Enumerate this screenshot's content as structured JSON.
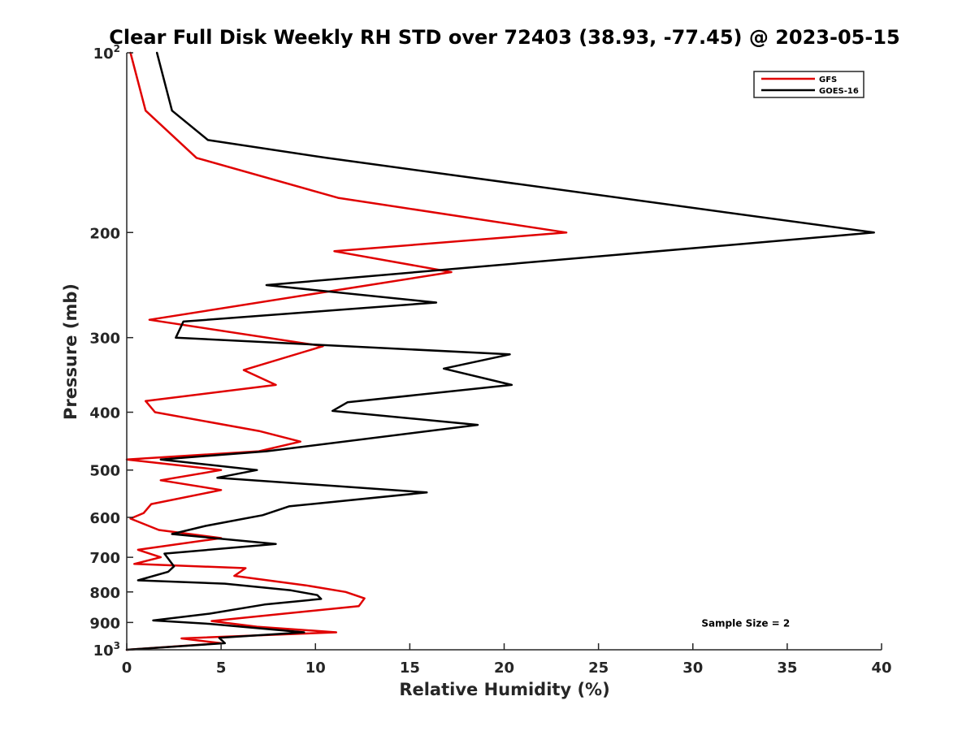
{
  "chart_data": {
    "type": "line",
    "title": "Clear Full Disk Weekly RH STD over 72403 (38.93, -77.45) @ 2023-05-15",
    "xlabel": "Relative Humidity (%)",
    "ylabel": "Pressure (mb)",
    "xlim": [
      0,
      40
    ],
    "ylim": [
      100,
      1000
    ],
    "y_scale": "log",
    "y_reversed": true,
    "grid": false,
    "legend_position": "top-right",
    "x_ticks": [
      0,
      5,
      10,
      15,
      20,
      25,
      30,
      35,
      40
    ],
    "x_tick_labels": [
      "0",
      "5",
      "10",
      "15",
      "20",
      "25",
      "30",
      "35",
      "40"
    ],
    "y_ticks": [
      100,
      200,
      300,
      400,
      500,
      600,
      700,
      800,
      900,
      1000
    ],
    "y_tick_labels": [
      {
        "base": "10",
        "sup": "2"
      },
      {
        "base": "200"
      },
      {
        "base": "300"
      },
      {
        "base": "400"
      },
      {
        "base": "500"
      },
      {
        "base": "600"
      },
      {
        "base": "700"
      },
      {
        "base": "800"
      },
      {
        "base": "900"
      },
      {
        "base": "10",
        "sup": "3"
      }
    ],
    "series": [
      {
        "name": "GFS",
        "color": "#e00000",
        "points": [
          [
            0.2,
            100
          ],
          [
            1.0,
            125
          ],
          [
            3.7,
            150
          ],
          [
            11.2,
            175
          ],
          [
            23.3,
            200
          ],
          [
            11.0,
            215
          ],
          [
            17.2,
            233
          ],
          [
            1.2,
            280
          ],
          [
            10.4,
            310
          ],
          [
            6.2,
            340
          ],
          [
            7.9,
            360
          ],
          [
            1.0,
            383
          ],
          [
            1.5,
            400
          ],
          [
            7.0,
            430
          ],
          [
            9.2,
            448
          ],
          [
            7.0,
            465
          ],
          [
            0.0,
            480
          ],
          [
            5.0,
            500
          ],
          [
            1.8,
            520
          ],
          [
            5.0,
            540
          ],
          [
            1.3,
            570
          ],
          [
            0.9,
            590
          ],
          [
            0.2,
            603
          ],
          [
            1.7,
            630
          ],
          [
            5.0,
            650
          ],
          [
            0.6,
            680
          ],
          [
            1.8,
            700
          ],
          [
            0.4,
            718
          ],
          [
            6.3,
            730
          ],
          [
            5.7,
            752
          ],
          [
            9.5,
            780
          ],
          [
            11.6,
            800
          ],
          [
            12.6,
            820
          ],
          [
            12.3,
            845
          ],
          [
            4.5,
            895
          ],
          [
            6.9,
            915
          ],
          [
            11.1,
            935
          ],
          [
            2.9,
            957
          ],
          [
            5.0,
            975
          ],
          [
            0.0,
            1000
          ]
        ]
      },
      {
        "name": "GOES-16",
        "color": "#000000",
        "points": [
          [
            1.6,
            100
          ],
          [
            2.4,
            125
          ],
          [
            4.3,
            140
          ],
          [
            10.6,
            150
          ],
          [
            39.6,
            200
          ],
          [
            7.4,
            245
          ],
          [
            16.4,
            262
          ],
          [
            3.0,
            282
          ],
          [
            2.6,
            300
          ],
          [
            20.3,
            320
          ],
          [
            16.8,
            338
          ],
          [
            20.4,
            360
          ],
          [
            11.7,
            385
          ],
          [
            10.9,
            398
          ],
          [
            18.6,
            420
          ],
          [
            7.4,
            465
          ],
          [
            1.8,
            480
          ],
          [
            6.9,
            500
          ],
          [
            4.8,
            515
          ],
          [
            15.9,
            545
          ],
          [
            8.6,
            575
          ],
          [
            7.2,
            595
          ],
          [
            4.2,
            620
          ],
          [
            2.4,
            640
          ],
          [
            7.9,
            665
          ],
          [
            2.0,
            690
          ],
          [
            2.5,
            725
          ],
          [
            2.2,
            740
          ],
          [
            0.6,
            765
          ],
          [
            5.2,
            775
          ],
          [
            8.7,
            795
          ],
          [
            10.1,
            810
          ],
          [
            10.3,
            822
          ],
          [
            7.3,
            840
          ],
          [
            4.4,
            870
          ],
          [
            1.4,
            893
          ],
          [
            4.4,
            905
          ],
          [
            9.4,
            935
          ],
          [
            4.9,
            955
          ],
          [
            5.2,
            975
          ],
          [
            0.0,
            1000
          ]
        ]
      }
    ],
    "annotations": [
      {
        "text": "Sample Size = 2",
        "x": 32.8,
        "y": 900
      }
    ]
  }
}
